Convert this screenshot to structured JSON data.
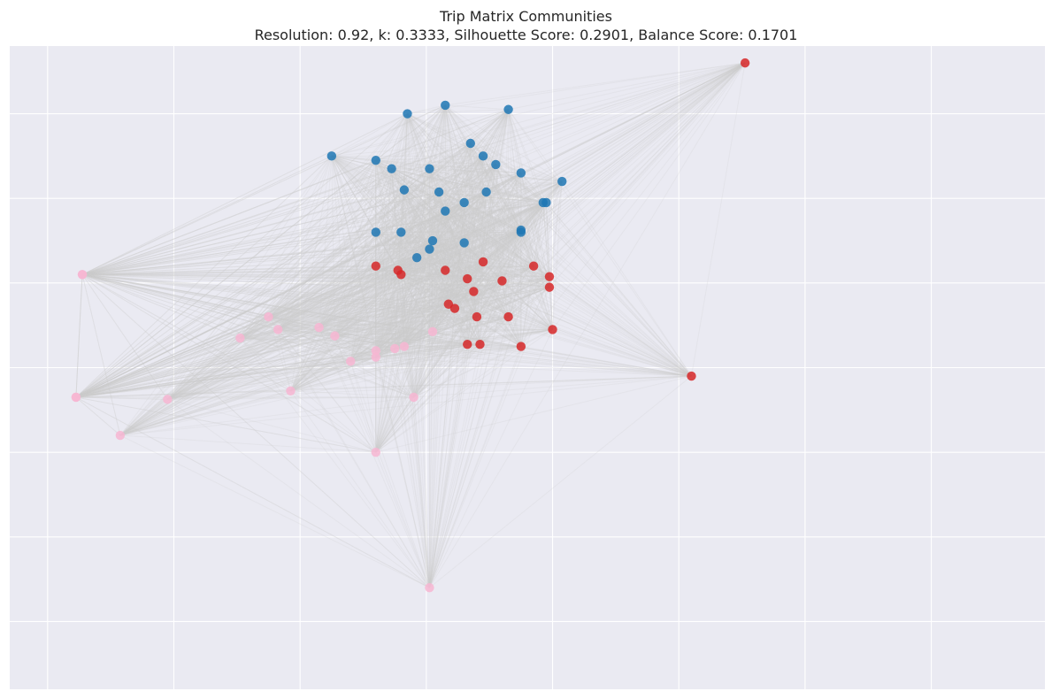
{
  "chart_data": {
    "type": "scatter",
    "title": "Trip Matrix Communities",
    "subtitle": "Resolution: 0.92, k: 0.3333, Silhouette Score: 0.2901, Balance Score: 0.1701",
    "xlabel": "",
    "ylabel": "",
    "grid": true,
    "legend": "none",
    "xlim": [
      -0.66,
      0.98
    ],
    "ylim": [
      -0.76,
      0.76
    ],
    "background_color": "#eaeaf2",
    "grid_color": "#ffffff",
    "edge_color": "#cccccc",
    "series": [
      {
        "color": "#1f77b4",
        "points": [
          [
            -0.03,
            0.6
          ],
          [
            0.03,
            0.62
          ],
          [
            0.13,
            0.61
          ],
          [
            -0.15,
            0.5
          ],
          [
            -0.08,
            0.49
          ],
          [
            -0.055,
            0.47
          ],
          [
            0.005,
            0.47
          ],
          [
            0.07,
            0.53
          ],
          [
            0.09,
            0.5
          ],
          [
            0.11,
            0.48
          ],
          [
            0.15,
            0.46
          ],
          [
            -0.035,
            0.42
          ],
          [
            0.02,
            0.415
          ],
          [
            0.095,
            0.415
          ],
          [
            0.185,
            0.39
          ],
          [
            0.19,
            0.39
          ],
          [
            0.215,
            0.44
          ],
          [
            0.03,
            0.37
          ],
          [
            0.06,
            0.39
          ],
          [
            -0.08,
            0.32
          ],
          [
            -0.04,
            0.32
          ],
          [
            0.01,
            0.3
          ],
          [
            0.005,
            0.28
          ],
          [
            -0.015,
            0.26
          ],
          [
            0.06,
            0.295
          ],
          [
            0.15,
            0.325
          ],
          [
            0.15,
            0.32
          ]
        ]
      },
      {
        "color": "#d62728",
        "points": [
          [
            0.505,
            0.72
          ],
          [
            -0.08,
            0.24
          ],
          [
            -0.045,
            0.23
          ],
          [
            -0.04,
            0.22
          ],
          [
            0.03,
            0.23
          ],
          [
            0.09,
            0.25
          ],
          [
            0.065,
            0.21
          ],
          [
            0.075,
            0.18
          ],
          [
            0.17,
            0.24
          ],
          [
            0.195,
            0.215
          ],
          [
            0.195,
            0.19
          ],
          [
            0.12,
            0.205
          ],
          [
            0.035,
            0.15
          ],
          [
            0.045,
            0.14
          ],
          [
            0.08,
            0.12
          ],
          [
            0.13,
            0.12
          ],
          [
            0.2,
            0.09
          ],
          [
            0.065,
            0.055
          ],
          [
            0.085,
            0.055
          ],
          [
            0.15,
            0.05
          ],
          [
            0.42,
            -0.02
          ]
        ]
      },
      {
        "color": "#f7b6d2",
        "points": [
          [
            -0.545,
            0.22
          ],
          [
            -0.25,
            0.12
          ],
          [
            -0.235,
            0.09
          ],
          [
            -0.295,
            0.07
          ],
          [
            -0.17,
            0.095
          ],
          [
            -0.145,
            0.075
          ],
          [
            0.01,
            0.085
          ],
          [
            -0.035,
            0.05
          ],
          [
            -0.05,
            0.045
          ],
          [
            -0.08,
            0.04
          ],
          [
            -0.08,
            0.025
          ],
          [
            -0.12,
            0.015
          ],
          [
            -0.215,
            -0.055
          ],
          [
            -0.02,
            -0.07
          ],
          [
            -0.41,
            -0.075
          ],
          [
            -0.545,
            0.22
          ],
          [
            -0.555,
            -0.07
          ],
          [
            -0.555,
            -0.07
          ],
          [
            -0.485,
            -0.16
          ],
          [
            -0.08,
            -0.2
          ],
          [
            0.005,
            -0.52
          ]
        ]
      }
    ]
  }
}
